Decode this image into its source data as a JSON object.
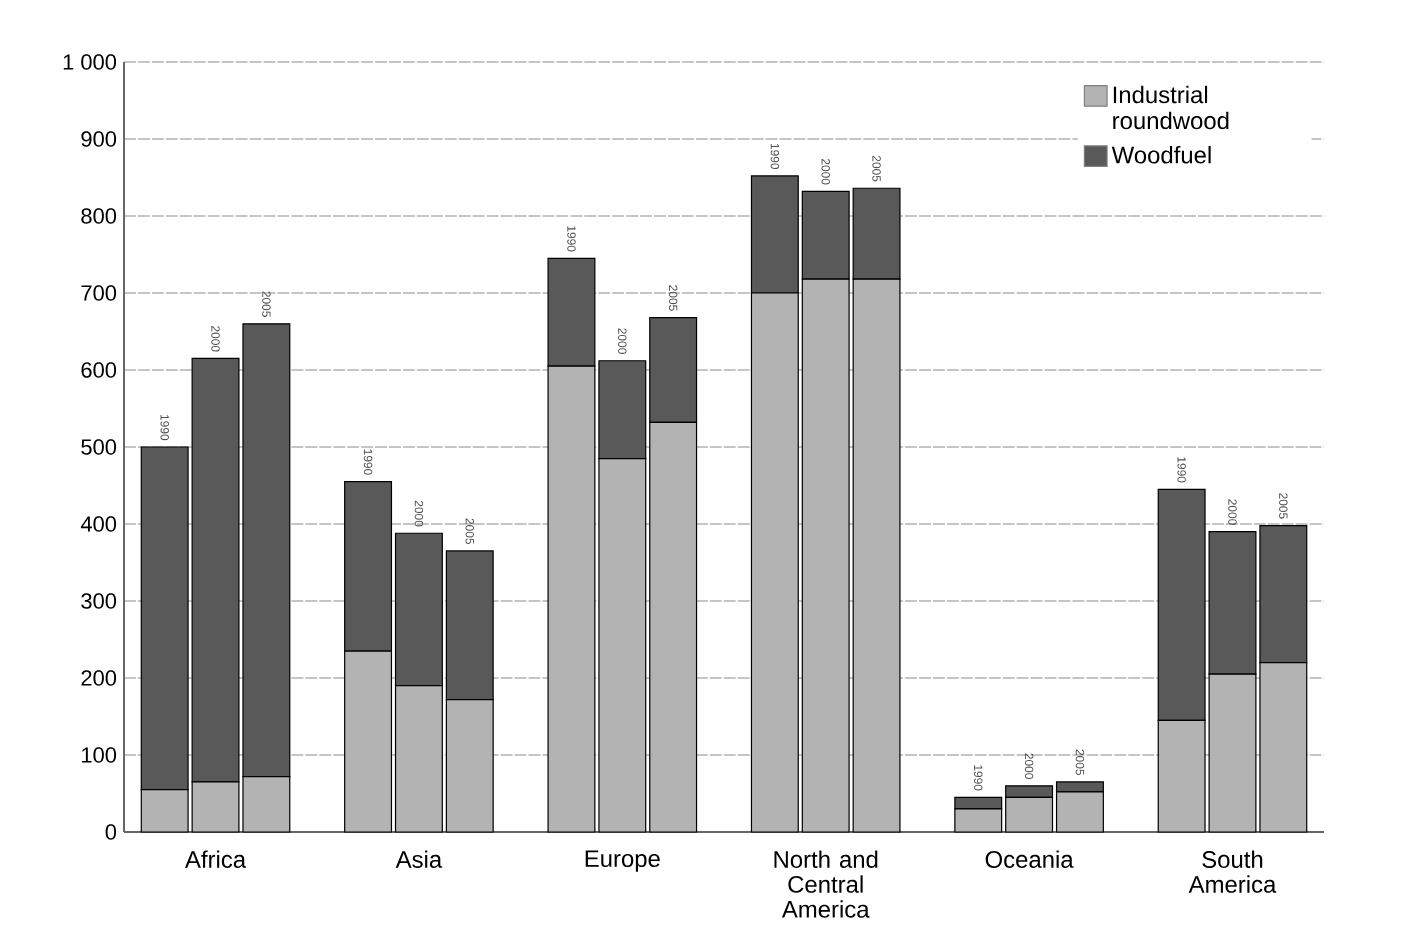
{
  "chart_data": {
    "type": "bar",
    "stacked": true,
    "categories": [
      null,
      "Africa",
      null,
      null,
      "Asia",
      null,
      null,
      "Europe",
      null,
      null,
      "North and Central America",
      null,
      null,
      "Oceania",
      null,
      null,
      "South America",
      null
    ],
    "series": [
      {
        "name": "Industrial roundwood",
        "color": "#b3b3b3",
        "values": [
          55,
          65,
          72,
          235,
          190,
          172,
          605,
          485,
          532,
          700,
          718,
          718,
          30,
          45,
          52,
          145,
          205,
          220
        ]
      },
      {
        "name": "Woodfuel",
        "color": "#595959",
        "values": [
          445,
          550,
          588,
          220,
          198,
          193,
          140,
          127,
          136,
          152,
          114,
          118,
          15,
          15,
          13,
          300,
          185,
          178
        ]
      }
    ],
    "annotations": [
      "1990",
      "2000",
      "2005",
      "1990",
      "2000",
      "2005",
      "1990",
      "2000",
      "2005",
      "1990",
      "2000",
      "2005",
      "1990",
      "2000",
      "2005",
      "1990",
      "2000",
      "2005"
    ],
    "ylim": [
      0,
      1000
    ],
    "yticks": [
      0,
      100,
      200,
      300,
      400,
      500,
      600,
      700,
      800,
      900,
      {
        "value": 1000,
        "label": "1 000"
      }
    ],
    "grid": "y",
    "legend": "top right"
  }
}
